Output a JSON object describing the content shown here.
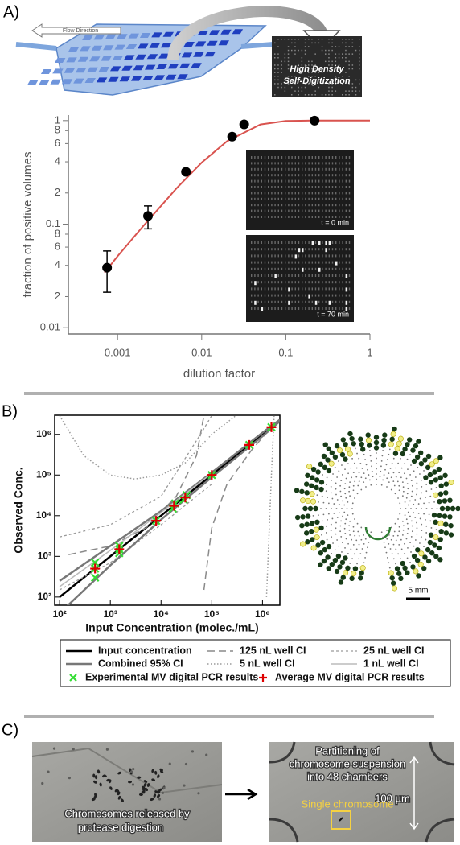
{
  "panels": {
    "a_label": "A)",
    "b_label": "B)",
    "c_label": "C)"
  },
  "diagram": {
    "flow_label": "Flow Direction",
    "box_text": [
      "High Density",
      "Self-Digitization"
    ]
  },
  "chart_data": [
    {
      "type": "scatter",
      "xlabel": "dilution factor",
      "ylabel": "fraction of positive volumes",
      "log_x": true,
      "log_y": true,
      "color": "#000000",
      "x": [
        0.00075,
        0.0023,
        0.0065,
        0.023,
        0.032,
        0.22
      ],
      "values": [
        0.038,
        0.12,
        0.32,
        0.7,
        0.92,
        1.0
      ],
      "error_low": [
        0.022,
        0.09,
        null,
        null,
        null,
        null
      ],
      "error_high": [
        0.055,
        0.15,
        null,
        null,
        null,
        null
      ],
      "fit": {
        "color": "#d9534f",
        "x": [
          0.0007,
          0.001,
          0.002,
          0.005,
          0.01,
          0.02,
          0.05,
          0.1,
          0.2,
          0.5,
          1
        ],
        "values": [
          0.034,
          0.049,
          0.095,
          0.221,
          0.393,
          0.632,
          0.918,
          0.993,
          1.0,
          1.0,
          1.0
        ]
      },
      "xlim": [
        0.00026,
        1
      ],
      "ylim": [
        0.0087,
        1.13
      ],
      "xticks": [
        0.001,
        0.01,
        0.1,
        1
      ],
      "yticks": [
        0.01,
        {
          "value": 0.02,
          "label": "2"
        },
        {
          "value": 0.04,
          "label": "4"
        },
        {
          "value": 0.06,
          "label": "6"
        },
        {
          "value": 0.08,
          "label": "8"
        },
        0.1,
        {
          "value": 0.2,
          "label": "2"
        },
        {
          "value": 0.4,
          "label": "4"
        },
        {
          "value": 0.6,
          "label": "6"
        },
        {
          "value": 0.8,
          "label": "8"
        },
        1
      ],
      "insets": [
        {
          "label": "t = 0 min"
        },
        {
          "label": "t = 70 min"
        }
      ]
    },
    {
      "type": "line",
      "xlabel": "Input Concentration (molec./mL)",
      "ylabel": "Observed Conc.",
      "log_x": true,
      "log_y": true,
      "xlim": [
        80,
        2200000
      ],
      "ylim": [
        63,
        2950000
      ],
      "xticks": [
        {
          "value": 100,
          "label": "10²"
        },
        {
          "value": 1000,
          "label": "10³"
        },
        {
          "value": 10000,
          "label": "10⁴"
        },
        {
          "value": 100000,
          "label": "10⁵"
        },
        {
          "value": 1000000,
          "label": "10⁶"
        }
      ],
      "yticks": [
        {
          "value": 100,
          "label": "10²"
        },
        {
          "value": 1000,
          "label": "10³"
        },
        {
          "value": 10000,
          "label": "10⁴"
        },
        {
          "value": 100000,
          "label": "10⁵"
        },
        {
          "value": 1000000,
          "label": "10⁶"
        }
      ],
      "series": [
        {
          "name": "Input concentration",
          "color": "#000000",
          "style": "solid",
          "width": 2.5,
          "lines": [
            {
              "x": [
                100,
                2200000
              ],
              "values": [
                100,
                2200000
              ]
            }
          ]
        },
        {
          "name": "125 nL well CI",
          "color": "#8a8a8a",
          "style": "dashed",
          "width": 1.5,
          "lines": [
            {
              "x": [
                150,
                1000,
                5000,
                20000,
                50000,
                70000
              ],
              "values": [
                1100,
                1800,
                5000,
                30000,
                300000,
                2900000
              ]
            },
            {
              "x": [
                70000,
                100000,
                200000,
                600000,
                1500000,
                2000000
              ],
              "values": [
                150,
                5000,
                60000,
                400000,
                1500000,
                2000000
              ]
            }
          ]
        },
        {
          "name": "25 nL well CI",
          "color": "#9a9a9a",
          "style": "fine",
          "width": 1.3,
          "lines": [
            {
              "x": [
                100,
                1000,
                10000,
                60000,
                100000
              ],
              "values": [
                3000,
                6000,
                30000,
                1000000,
                2900000
              ]
            },
            {
              "x": [
                100,
                1000,
                10000,
                100000
              ],
              "values": [
                150,
                700,
                6000,
                60000
              ]
            }
          ]
        },
        {
          "name": "Combined 95% CI",
          "color": "#777777",
          "style": "solid",
          "width": 2.5,
          "lines": [
            {
              "x": [
                100,
                1000,
                10000,
                100000,
                1000000,
                2200000
              ],
              "values": [
                250,
                1800,
                13000,
                115000,
                1100000,
                2300000
              ]
            },
            {
              "x": [
                100,
                1000,
                10000,
                100000,
                1000000,
                2200000
              ],
              "values": [
                40,
                600,
                8000,
                88000,
                900000,
                2100000
              ]
            }
          ]
        },
        {
          "name": "5 nL well CI",
          "color": "#9a9a9a",
          "style": "dotted",
          "width": 1.5,
          "lines": [
            {
              "x": [
                100,
                300,
                1000,
                3000,
                10000,
                30000,
                100000,
                300000
              ],
              "values": [
                2900000,
                300000,
                100000,
                80000,
                100000,
                200000,
                1000000,
                2900000
              ]
            },
            {
              "x": [
                1200000,
                1500000,
                1700000
              ],
              "values": [
                100,
                100000,
                2900000
              ]
            }
          ]
        },
        {
          "name": "1 nL well CI",
          "color": "#bbbbbb",
          "style": "solid",
          "width": 1.5,
          "lines": [
            {
              "x": [
                100,
                1000,
                10000,
                100000
              ],
              "values": [
                180,
                1400,
                12000,
                110000
              ]
            }
          ]
        },
        {
          "name": "Experimental MV digital PCR results",
          "color": "#33dd33",
          "marker": "x",
          "lines": [
            {
              "x": [
                500,
                500,
                500,
                1500,
                1500,
                1500,
                8000,
                17000,
                19000,
                28000,
                32000,
                100000,
                550000,
                1500000
              ],
              "values": [
                300,
                500,
                700,
                1200,
                1500,
                1800,
                7500,
                15000,
                20000,
                25000,
                32000,
                100000,
                550000,
                1500000
              ]
            }
          ]
        },
        {
          "name": "Average MV digital PCR results",
          "color": "#dd0000",
          "marker": "+",
          "lines": [
            {
              "x": [
                500,
                1500,
                8000,
                18000,
                30000,
                100000,
                550000,
                1500000
              ],
              "values": [
                500,
                1500,
                7500,
                17500,
                28000,
                100000,
                550000,
                1500000
              ]
            }
          ]
        }
      ]
    }
  ],
  "array_image": {
    "scale_label": "5 mm"
  },
  "micrographs": {
    "left_caption": [
      "Chromosomes released by",
      "protease digestion"
    ],
    "right_caption": [
      "Partitioning of",
      "chromosome suspension",
      "into 48 chambers"
    ],
    "scale_label": "100 µm",
    "highlight_label": "Single chromosome"
  }
}
